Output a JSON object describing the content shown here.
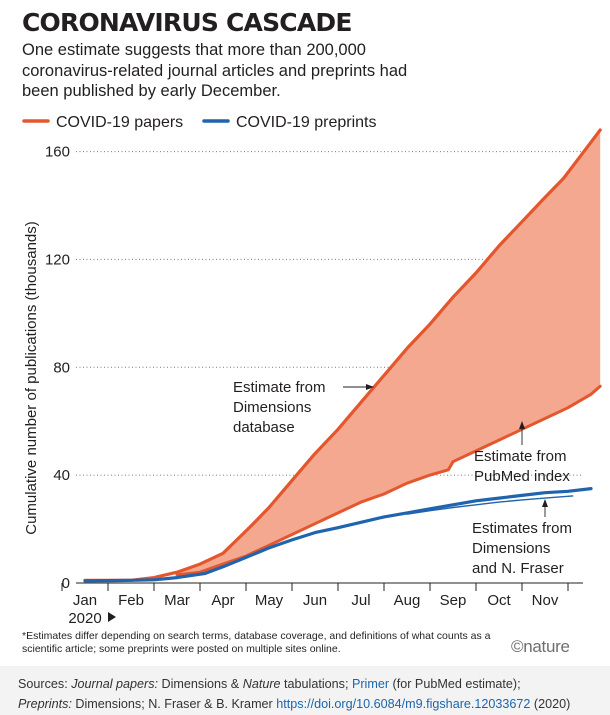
{
  "header": {
    "title": "CORONAVIRUS CASCADE",
    "subtitle": "One estimate suggests that more than 200,000 coronavirus-related journal articles and preprints had been published by early December."
  },
  "colors": {
    "papers": "#e4572e",
    "preprints": "#1f64ad",
    "band": "#f4a88f",
    "text": "#231f20",
    "grid": "#8a8a8a"
  },
  "chart_data": {
    "type": "line",
    "title": "",
    "ylabel": "Cumulative number of publications (thousands)",
    "xlabel": "",
    "year_label": "2020",
    "ylim": [
      0,
      168
    ],
    "yticks": [
      0,
      40,
      80,
      120,
      160
    ],
    "xlim": [
      0,
      11.4
    ],
    "month_labels": [
      "Jan",
      "Feb",
      "Mar",
      "Apr",
      "May",
      "Jun",
      "Jul",
      "Aug",
      "Sep",
      "Oct",
      "Nov"
    ],
    "grid": "horizontal dotted",
    "legend_position": "top-left",
    "series": [
      {
        "name": "COVID-19 papers",
        "label": "Estimate from Dimensions database",
        "x": [
          0,
          1.0,
          1.5,
          2.0,
          2.5,
          3.0,
          3.3,
          3.6,
          4.0,
          4.3,
          4.6,
          5.0,
          5.5,
          6.0,
          6.5,
          7.0,
          7.5,
          8.0,
          8.5,
          9.0,
          9.5,
          10.0,
          10.4,
          10.8,
          11.2
        ],
        "y": [
          1,
          1,
          2,
          4,
          7,
          11,
          16,
          21,
          28,
          34,
          40,
          48,
          57,
          67,
          77,
          87,
          96,
          106,
          115,
          125,
          134,
          143,
          150,
          159,
          168
        ]
      },
      {
        "name": "",
        "label": "Estimate from PubMed index",
        "x": [
          2.0,
          2.5,
          3.0,
          3.5,
          4.0,
          4.5,
          5.0,
          5.5,
          6.0,
          6.5,
          7.0,
          7.5,
          7.9,
          8.0,
          8.5,
          9.0,
          9.5,
          10.0,
          10.5,
          11.0,
          11.2
        ],
        "y": [
          3,
          4,
          7,
          10,
          14,
          18,
          22,
          26,
          30,
          33,
          37,
          40,
          42,
          45,
          49,
          53,
          57,
          61,
          65,
          70,
          73
        ]
      },
      {
        "name": "COVID-19 preprints",
        "label": "Estimates from Dimensions and N. Fraser",
        "x": [
          0,
          0.5,
          1.0,
          1.5,
          2.0,
          2.3,
          2.6,
          3.0,
          3.5,
          4.0,
          4.5,
          5.0,
          5.5,
          6.0,
          6.5,
          7.0,
          7.5,
          8.0,
          8.5,
          9.0,
          9.5,
          10.0,
          10.5,
          11.0
        ],
        "y": [
          0.8,
          0.9,
          1.0,
          1.2,
          2.0,
          2.8,
          3.5,
          6.0,
          9.5,
          13.0,
          16.0,
          18.7,
          20.5,
          22.5,
          24.5,
          26.0,
          27.5,
          29.0,
          30.5,
          31.5,
          32.5,
          33.5,
          34.0,
          35.0
        ]
      },
      {
        "name": "",
        "label": "Estimates from Dimensions and N. Fraser",
        "x": [
          7.0,
          7.5,
          8.0,
          8.5,
          9.0,
          9.5,
          10.0,
          10.6
        ],
        "y": [
          25.5,
          26.8,
          28.0,
          29.0,
          30.0,
          30.8,
          31.5,
          32.3
        ]
      }
    ],
    "annotations": [
      "Estimate from Dimensions database",
      "Estimate from PubMed index",
      "Estimates from Dimensions and N. Fraser"
    ]
  },
  "legend": {
    "papers_label": "COVID-19 papers",
    "preprints_label": "COVID-19 preprints"
  },
  "annotations": {
    "dimensions_line1": "Estimate from",
    "dimensions_line2": "Dimensions",
    "dimensions_line3": "database",
    "pubmed_line1": "Estimate from",
    "pubmed_line2": "PubMed index",
    "fraser_line1": "Estimates from",
    "fraser_line2": "Dimensions",
    "fraser_line3": "and N. Fraser"
  },
  "footnote": "*Estimates differ depending on search terms, database coverage, and definitions of what counts as a scientific article; some preprints were posted on multiple sites online.",
  "brand": "©nature",
  "sources": {
    "label1": "Sources: ",
    "journal_label": "Journal papers:",
    "journal_text": " Dimensions & ",
    "nature_word": "Nature",
    "journal_text2": " tabulations; ",
    "primer_link": "Primer",
    "primer_note": " (for PubMed estimate);",
    "preprints_label": "Preprints:",
    "preprints_text": " Dimensions; N. Fraser & B. Kramer ",
    "doi_link": "https://doi.org/10.6084/m9.figshare.12033672",
    "year_suffix": " (2020)"
  }
}
